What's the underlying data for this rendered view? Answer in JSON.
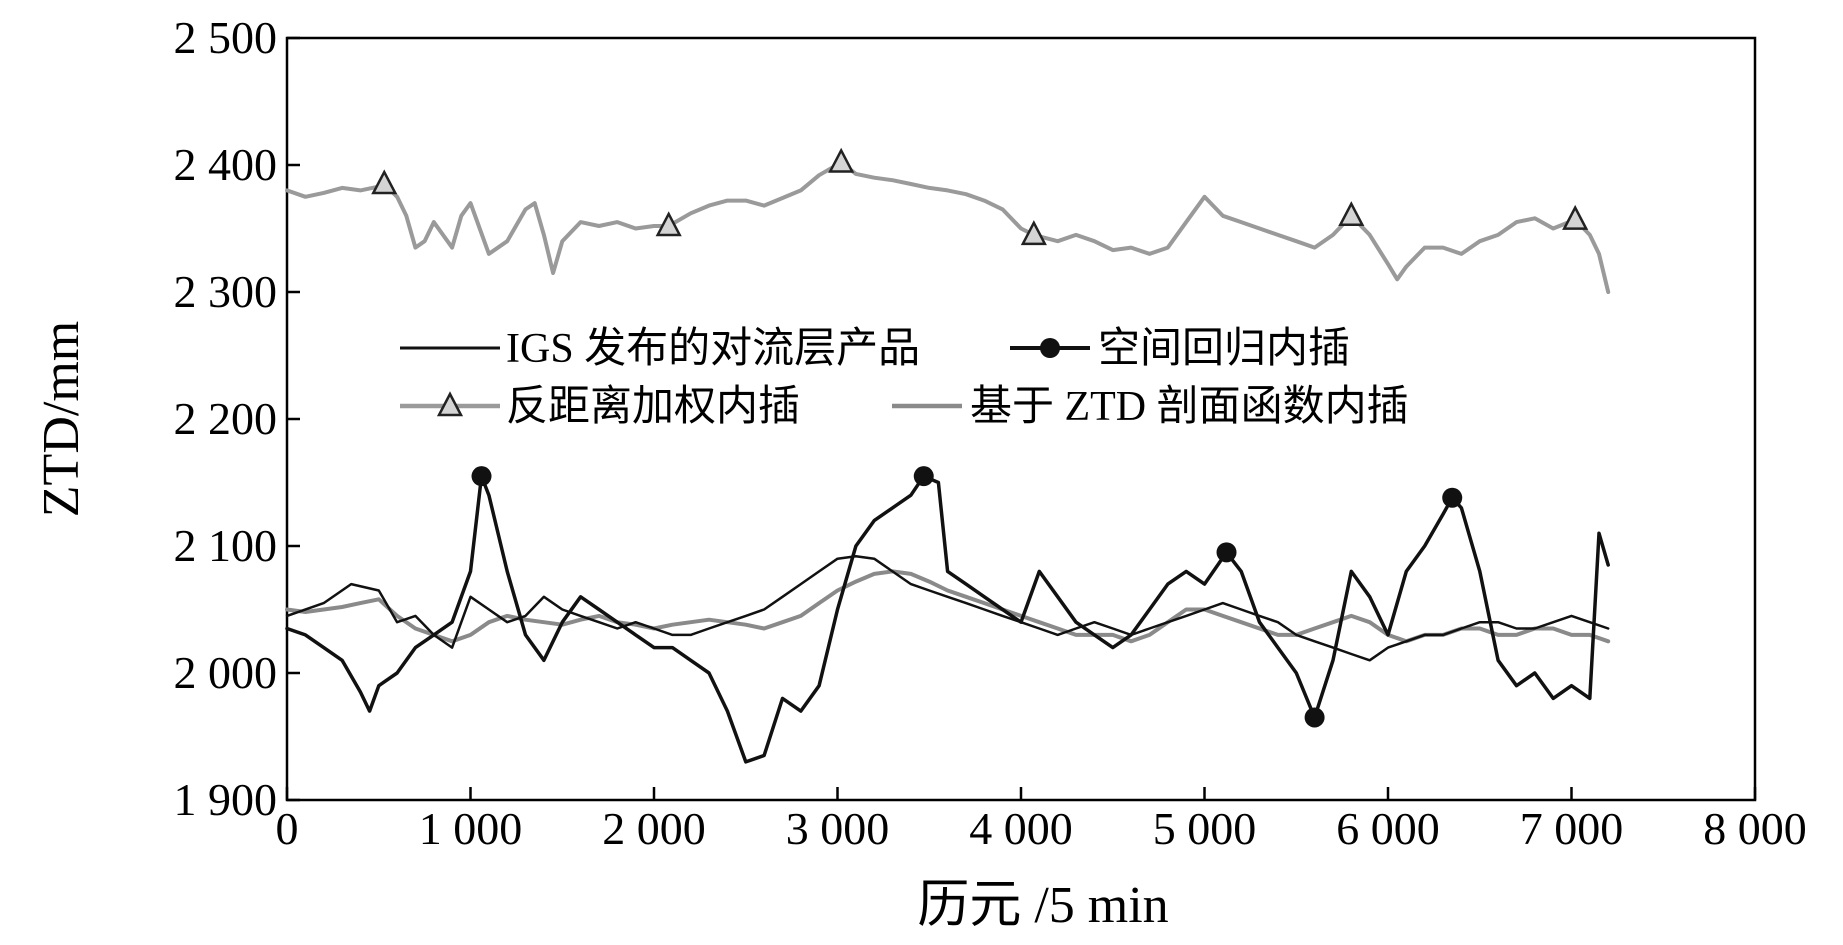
{
  "chart_data": {
    "type": "line",
    "title": "",
    "xlabel": "历元 /5 min",
    "ylabel": "ZTD/mm",
    "xlim": [
      0,
      8000
    ],
    "ylim": [
      1900,
      2500
    ],
    "x_ticks": [
      0,
      1000,
      2000,
      3000,
      4000,
      5000,
      6000,
      7000,
      8000
    ],
    "x_tick_labels": [
      "0",
      "1 000",
      "2 000",
      "3 000",
      "4 000",
      "5 000",
      "6 000",
      "7 000",
      "8 000"
    ],
    "y_ticks": [
      1900,
      2000,
      2100,
      2200,
      2300,
      2400,
      2500
    ],
    "y_tick_labels": [
      "1 900",
      "2 000",
      "2 100",
      "2 200",
      "2 300",
      "2 400",
      "2 500"
    ],
    "grid": false,
    "legend_position": "center",
    "colors": {
      "igs": "#111111",
      "spatial_regression": "#111111",
      "idw": "#9a9a9a",
      "ztd_profile": "#8a8a8a"
    },
    "series": [
      {
        "name": "IGS 发布的对流层产品",
        "key": "igs",
        "marker": "none",
        "x": [
          0,
          200,
          350,
          500,
          600,
          700,
          800,
          900,
          1000,
          1100,
          1200,
          1300,
          1400,
          1500,
          1600,
          1700,
          1800,
          1900,
          2000,
          2100,
          2200,
          2300,
          2400,
          2500,
          2600,
          2700,
          2800,
          2900,
          3000,
          3100,
          3200,
          3300,
          3400,
          3500,
          3600,
          3700,
          3800,
          3900,
          4000,
          4100,
          4200,
          4300,
          4400,
          4500,
          4600,
          4700,
          4800,
          4900,
          5000,
          5100,
          5200,
          5300,
          5400,
          5500,
          5600,
          5700,
          5800,
          5900,
          6000,
          6100,
          6200,
          6300,
          6400,
          6500,
          6600,
          6700,
          6800,
          6900,
          7000,
          7100,
          7200
        ],
        "y": [
          2045,
          2055,
          2070,
          2065,
          2040,
          2045,
          2030,
          2020,
          2060,
          2050,
          2040,
          2045,
          2060,
          2050,
          2045,
          2040,
          2035,
          2040,
          2035,
          2030,
          2030,
          2035,
          2040,
          2045,
          2050,
          2060,
          2070,
          2080,
          2090,
          2092,
          2090,
          2080,
          2070,
          2065,
          2060,
          2055,
          2050,
          2045,
          2040,
          2035,
          2030,
          2035,
          2040,
          2035,
          2030,
          2035,
          2040,
          2045,
          2050,
          2055,
          2050,
          2045,
          2040,
          2030,
          2025,
          2020,
          2015,
          2010,
          2020,
          2025,
          2030,
          2030,
          2035,
          2040,
          2040,
          2035,
          2035,
          2040,
          2045,
          2040,
          2035
        ]
      },
      {
        "name": "空间回归内插",
        "key": "spatial_regression",
        "marker": "circle",
        "marker_x": [
          1060,
          3470,
          5120,
          5600,
          6350
        ],
        "marker_y": [
          2155,
          2155,
          2095,
          1965,
          2138
        ],
        "x": [
          0,
          100,
          200,
          300,
          400,
          450,
          500,
          600,
          700,
          800,
          900,
          1000,
          1060,
          1100,
          1200,
          1300,
          1400,
          1500,
          1600,
          1700,
          1800,
          1900,
          2000,
          2100,
          2200,
          2300,
          2400,
          2500,
          2600,
          2700,
          2800,
          2900,
          3000,
          3100,
          3200,
          3300,
          3400,
          3470,
          3550,
          3600,
          3700,
          3800,
          3900,
          4000,
          4100,
          4200,
          4300,
          4400,
          4500,
          4600,
          4700,
          4800,
          4900,
          5000,
          5120,
          5200,
          5300,
          5400,
          5500,
          5600,
          5700,
          5800,
          5900,
          6000,
          6100,
          6200,
          6300,
          6350,
          6400,
          6500,
          6600,
          6700,
          6800,
          6900,
          7000,
          7100,
          7150,
          7200
        ],
        "y": [
          2035,
          2030,
          2020,
          2010,
          1985,
          1970,
          1990,
          2000,
          2020,
          2030,
          2040,
          2080,
          2155,
          2140,
          2080,
          2030,
          2010,
          2040,
          2060,
          2050,
          2040,
          2030,
          2020,
          2020,
          2010,
          2000,
          1970,
          1930,
          1935,
          1980,
          1970,
          1990,
          2050,
          2100,
          2120,
          2130,
          2140,
          2155,
          2150,
          2080,
          2070,
          2060,
          2050,
          2040,
          2080,
          2060,
          2040,
          2030,
          2020,
          2030,
          2050,
          2070,
          2080,
          2070,
          2095,
          2080,
          2040,
          2020,
          2000,
          1965,
          2010,
          2080,
          2060,
          2030,
          2080,
          2100,
          2125,
          2138,
          2130,
          2080,
          2010,
          1990,
          2000,
          1980,
          1990,
          1980,
          2110,
          2085
        ]
      },
      {
        "name": "反距离加权内插",
        "key": "idw",
        "marker": "triangle",
        "marker_x": [
          530,
          2080,
          3020,
          4070,
          5800,
          7020
        ],
        "marker_y": [
          2385,
          2352,
          2402,
          2345,
          2360,
          2357
        ],
        "x": [
          0,
          100,
          200,
          300,
          400,
          500,
          530,
          600,
          650,
          700,
          750,
          800,
          900,
          950,
          1000,
          1100,
          1200,
          1300,
          1350,
          1400,
          1450,
          1500,
          1600,
          1700,
          1800,
          1900,
          2000,
          2080,
          2200,
          2300,
          2400,
          2500,
          2600,
          2700,
          2800,
          2900,
          3020,
          3100,
          3200,
          3300,
          3400,
          3500,
          3600,
          3700,
          3800,
          3900,
          4000,
          4070,
          4200,
          4300,
          4400,
          4500,
          4600,
          4700,
          4800,
          4900,
          5000,
          5100,
          5200,
          5300,
          5400,
          5500,
          5600,
          5700,
          5800,
          5900,
          6000,
          6050,
          6100,
          6200,
          6300,
          6400,
          6500,
          6600,
          6700,
          6800,
          6900,
          7020,
          7100,
          7150,
          7200
        ],
        "y": [
          2380,
          2375,
          2378,
          2382,
          2380,
          2383,
          2385,
          2375,
          2360,
          2335,
          2340,
          2355,
          2335,
          2360,
          2370,
          2330,
          2340,
          2365,
          2370,
          2345,
          2315,
          2340,
          2355,
          2352,
          2355,
          2350,
          2352,
          2352,
          2362,
          2368,
          2372,
          2372,
          2368,
          2374,
          2380,
          2392,
          2402,
          2393,
          2390,
          2388,
          2385,
          2382,
          2380,
          2377,
          2372,
          2365,
          2350,
          2345,
          2340,
          2345,
          2340,
          2333,
          2335,
          2330,
          2335,
          2355,
          2375,
          2360,
          2355,
          2350,
          2345,
          2340,
          2335,
          2345,
          2360,
          2345,
          2322,
          2310,
          2320,
          2335,
          2335,
          2330,
          2340,
          2345,
          2355,
          2358,
          2350,
          2357,
          2345,
          2330,
          2300
        ]
      },
      {
        "name": "基于 ZTD 剖面函数内插",
        "key": "ztd_profile",
        "marker": "none",
        "x": [
          0,
          100,
          200,
          300,
          400,
          500,
          600,
          700,
          800,
          900,
          1000,
          1100,
          1200,
          1300,
          1400,
          1500,
          1600,
          1700,
          1800,
          1900,
          2000,
          2100,
          2200,
          2300,
          2400,
          2500,
          2600,
          2700,
          2800,
          2900,
          3000,
          3100,
          3200,
          3300,
          3400,
          3500,
          3600,
          3700,
          3800,
          3900,
          4000,
          4100,
          4200,
          4300,
          4400,
          4500,
          4600,
          4700,
          4800,
          4900,
          5000,
          5100,
          5200,
          5300,
          5400,
          5500,
          5600,
          5700,
          5800,
          5900,
          6000,
          6100,
          6200,
          6300,
          6400,
          6500,
          6600,
          6700,
          6800,
          6900,
          7000,
          7100,
          7200
        ],
        "y": [
          2050,
          2048,
          2050,
          2052,
          2055,
          2058,
          2045,
          2035,
          2030,
          2025,
          2030,
          2040,
          2045,
          2042,
          2040,
          2038,
          2042,
          2045,
          2040,
          2038,
          2035,
          2038,
          2040,
          2042,
          2040,
          2038,
          2035,
          2040,
          2045,
          2055,
          2065,
          2072,
          2078,
          2080,
          2078,
          2072,
          2065,
          2060,
          2055,
          2050,
          2045,
          2040,
          2035,
          2030,
          2030,
          2030,
          2025,
          2030,
          2040,
          2050,
          2050,
          2045,
          2040,
          2035,
          2030,
          2030,
          2035,
          2040,
          2045,
          2040,
          2030,
          2025,
          2030,
          2030,
          2035,
          2035,
          2030,
          2030,
          2035,
          2035,
          2030,
          2030,
          2025
        ]
      }
    ]
  }
}
